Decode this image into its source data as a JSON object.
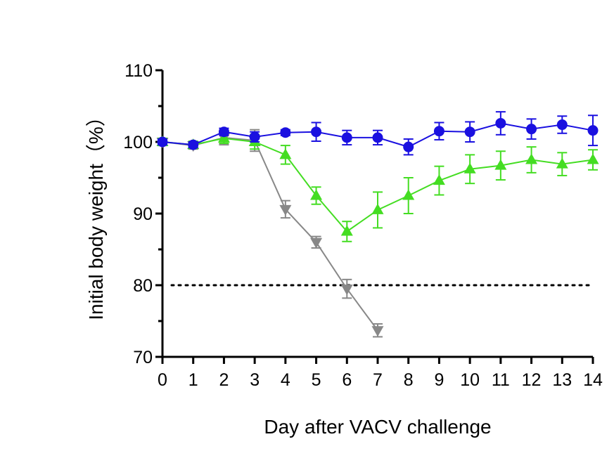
{
  "chart_data": {
    "type": "line",
    "title": "",
    "xlabel": "Day after VACV challenge",
    "ylabel": "Initial body weight（%）",
    "xlim": [
      0,
      14
    ],
    "ylim": [
      70,
      110
    ],
    "x_ticks": [
      "0",
      "1",
      "2",
      "3",
      "4",
      "5",
      "6",
      "7",
      "8",
      "9",
      "10",
      "11",
      "12",
      "13",
      "14"
    ],
    "y_ticks": [
      "70",
      "80",
      "90",
      "100",
      "110"
    ],
    "reference_line": {
      "y": 80,
      "style": "dotted"
    },
    "grid": false,
    "legend": "none",
    "series": [
      {
        "name": "blue circles",
        "color": "#1a10e0",
        "marker": "circle",
        "x": [
          0,
          1,
          2,
          3,
          4,
          5,
          6,
          7,
          8,
          9,
          10,
          11,
          12,
          13,
          14
        ],
        "values": [
          100,
          99.6,
          101.4,
          100.7,
          101.3,
          101.4,
          100.6,
          100.6,
          99.3,
          101.5,
          101.4,
          102.6,
          101.8,
          102.4,
          101.6
        ],
        "errors": [
          0.4,
          0.4,
          0.5,
          0.7,
          0.4,
          1.3,
          1.0,
          1.0,
          1.1,
          1.2,
          1.4,
          1.6,
          1.4,
          1.2,
          2.1
        ]
      },
      {
        "name": "green triangles",
        "color": "#44dd22",
        "marker": "triangle-up",
        "x": [
          0,
          1,
          2,
          3,
          4,
          5,
          6,
          7,
          8,
          9,
          10,
          11,
          12,
          13,
          14
        ],
        "values": [
          100,
          99.6,
          100.5,
          100.0,
          98.2,
          92.5,
          87.5,
          90.5,
          92.5,
          94.6,
          96.2,
          96.7,
          97.5,
          96.9,
          97.5
        ],
        "errors": [
          0.5,
          0.5,
          0.7,
          1.0,
          1.3,
          1.2,
          1.4,
          2.5,
          2.5,
          2.0,
          2.0,
          2.0,
          1.8,
          1.6,
          1.4
        ]
      },
      {
        "name": "grey triangles",
        "color": "#888888",
        "marker": "triangle-down",
        "x": [
          0,
          1,
          2,
          3,
          4,
          5,
          6,
          7
        ],
        "values": [
          100,
          99.5,
          100.6,
          100.2,
          90.6,
          86.0,
          79.5,
          73.7
        ],
        "errors": [
          0.5,
          0.5,
          1.0,
          1.5,
          1.2,
          0.8,
          1.3,
          0.9
        ]
      }
    ]
  }
}
